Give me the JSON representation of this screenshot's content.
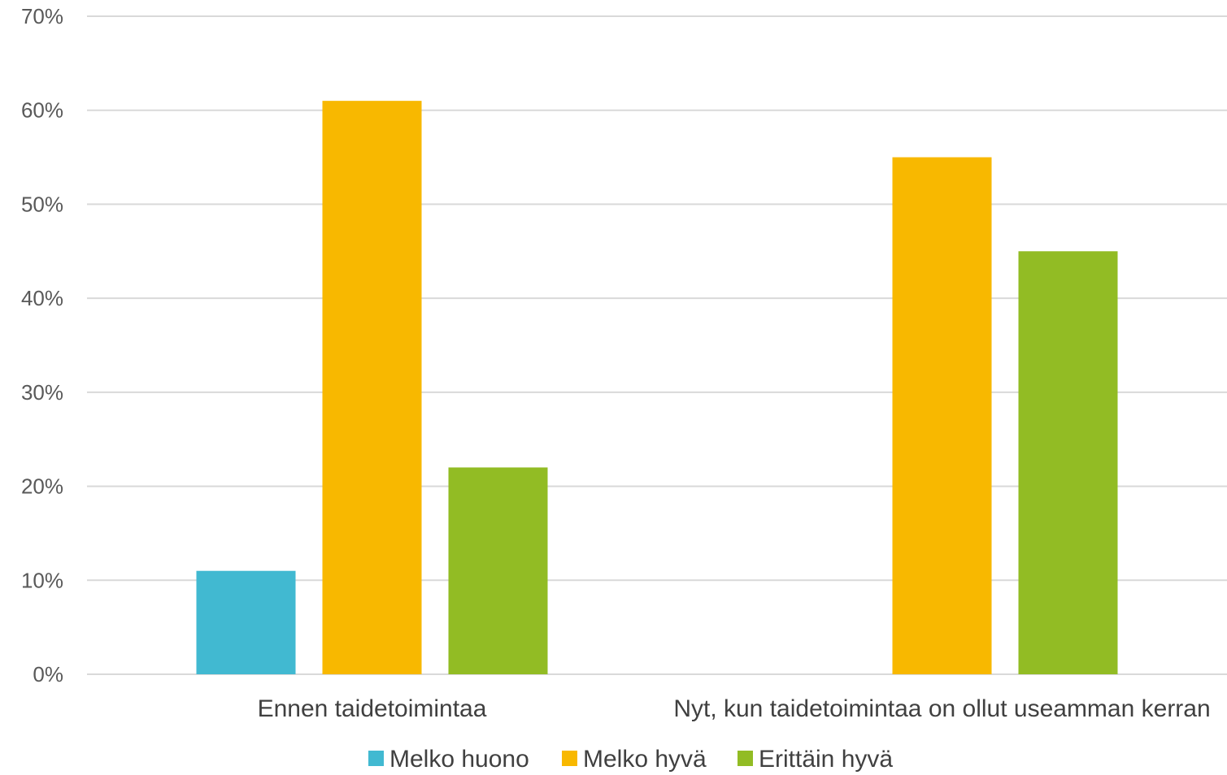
{
  "chart_data": {
    "type": "bar",
    "categories": [
      "Ennen taidetoimintaa",
      "Nyt, kun taidetoimintaa on ollut useamman kerran"
    ],
    "series": [
      {
        "name": "Melko huono",
        "values": [
          11,
          0
        ],
        "color": "#41b9d1"
      },
      {
        "name": "Melko hyvä",
        "values": [
          61,
          55
        ],
        "color": "#f8b800"
      },
      {
        "name": "Erittäin hyvä",
        "values": [
          22,
          45
        ],
        "color": "#92bc24"
      }
    ],
    "y_ticks": [
      "0%",
      "10%",
      "20%",
      "30%",
      "40%",
      "50%",
      "60%",
      "70%"
    ],
    "ylim": [
      0,
      70
    ],
    "grid": true,
    "legend_position": "bottom"
  }
}
